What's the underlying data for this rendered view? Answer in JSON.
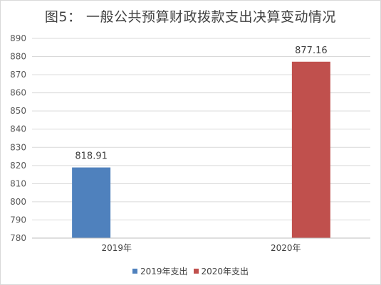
{
  "chart_data": {
    "type": "bar",
    "title": "图5：   一般公共预算财政拨款支出决算变动情况",
    "categories": [
      "2019年",
      "2020年"
    ],
    "series": [
      {
        "name": "2019年支出",
        "color": "#4f81bd",
        "values": [
          818.91,
          null
        ],
        "labels": [
          "818.91",
          ""
        ]
      },
      {
        "name": "2020年支出",
        "color": "#c0504d",
        "values": [
          null,
          877.16
        ],
        "labels": [
          "",
          "877.16"
        ]
      }
    ],
    "ylim": [
      780,
      890
    ],
    "yticks": [
      780,
      790,
      800,
      810,
      820,
      830,
      840,
      850,
      860,
      870,
      880,
      890
    ],
    "grid": true,
    "legend": "bottom",
    "xlabel": "",
    "ylabel": ""
  }
}
